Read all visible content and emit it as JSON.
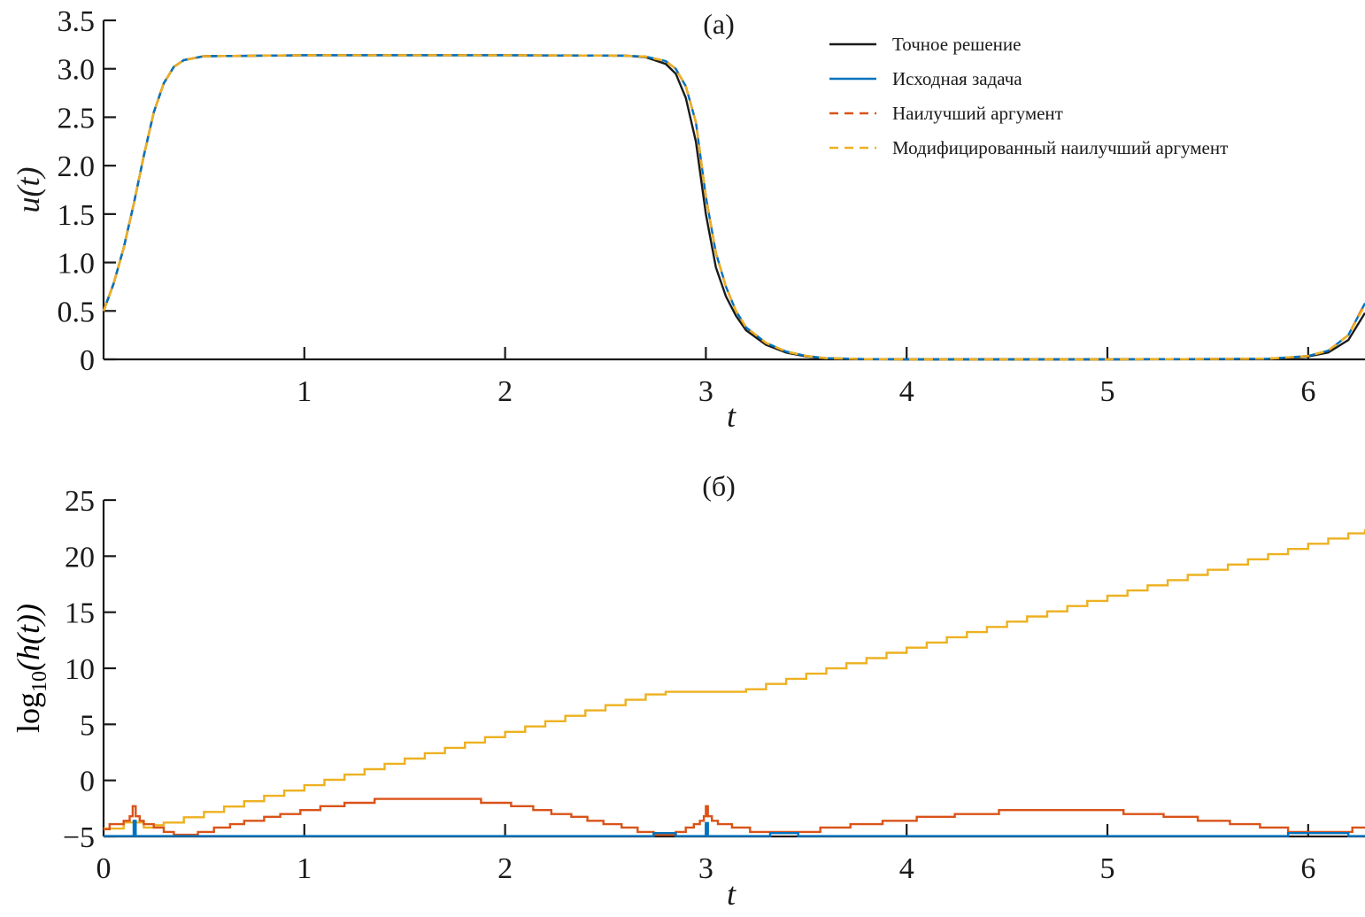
{
  "chart_data": [
    {
      "type": "line",
      "title": "(a)",
      "xlabel": "t",
      "ylabel": "u(t)",
      "xlim": [
        0,
        6.283
      ],
      "ylim": [
        0,
        3.5
      ],
      "xticks": [
        1,
        2,
        3,
        4,
        5,
        6
      ],
      "xtick_labels": [
        "1",
        "2",
        "3",
        "4",
        "5",
        "6"
      ],
      "yticks": [
        0,
        0.5,
        1,
        1.5,
        2,
        2.5,
        3,
        3.5
      ],
      "ytick_labels": [
        "0",
        "0.5",
        "1.0",
        "1.5",
        "2.0",
        "2.5",
        "3.0",
        "3.5"
      ],
      "grid": false,
      "legend_position": "top-right",
      "x": [
        0,
        0.05,
        0.1,
        0.15,
        0.2,
        0.25,
        0.3,
        0.35,
        0.4,
        0.5,
        1,
        2,
        2.6,
        2.7,
        2.8,
        2.85,
        2.9,
        2.95,
        3.0,
        3.05,
        3.1,
        3.15,
        3.2,
        3.3,
        3.4,
        3.5,
        3.6,
        3.8,
        4,
        5,
        5.8,
        6.0,
        6.1,
        6.2,
        6.283
      ],
      "series": [
        {
          "name": "Точное решение",
          "color": "#1a1a1a",
          "style": "solid",
          "values": [
            0.5,
            0.78,
            1.15,
            1.6,
            2.1,
            2.55,
            2.85,
            3.02,
            3.09,
            3.13,
            3.14,
            3.14,
            3.135,
            3.12,
            3.05,
            2.95,
            2.7,
            2.25,
            1.5,
            0.95,
            0.65,
            0.45,
            0.3,
            0.15,
            0.07,
            0.03,
            0.01,
            0.002,
            0,
            0,
            0.005,
            0.03,
            0.07,
            0.2,
            0.48
          ]
        },
        {
          "name": "Исходная задача",
          "color": "#0072bd",
          "style": "solid",
          "values": [
            0.5,
            0.78,
            1.15,
            1.6,
            2.1,
            2.55,
            2.85,
            3.02,
            3.09,
            3.13,
            3.14,
            3.14,
            3.135,
            3.125,
            3.08,
            3.0,
            2.82,
            2.45,
            1.68,
            1.1,
            0.75,
            0.5,
            0.33,
            0.17,
            0.08,
            0.035,
            0.012,
            0.003,
            0,
            0,
            0.006,
            0.035,
            0.09,
            0.25,
            0.58
          ]
        },
        {
          "name": "Наилучший аргумент",
          "color": "#d95319",
          "style": "dashed",
          "values": [
            0.5,
            0.78,
            1.15,
            1.6,
            2.1,
            2.55,
            2.85,
            3.02,
            3.09,
            3.13,
            3.14,
            3.14,
            3.135,
            3.125,
            3.08,
            3.0,
            2.82,
            2.45,
            1.68,
            1.1,
            0.75,
            0.5,
            0.33,
            0.17,
            0.08,
            0.035,
            0.012,
            0.003,
            0,
            0,
            0.006,
            0.035,
            0.09,
            0.25,
            0.58
          ]
        },
        {
          "name": "Модифицированный наилучший аргумент",
          "color": "#edb120",
          "style": "dashed",
          "values": [
            0.5,
            0.78,
            1.15,
            1.6,
            2.1,
            2.55,
            2.85,
            3.02,
            3.09,
            3.13,
            3.14,
            3.14,
            3.135,
            3.125,
            3.08,
            3.0,
            2.82,
            2.45,
            1.68,
            1.1,
            0.75,
            0.5,
            0.33,
            0.17,
            0.08,
            0.035,
            0.012,
            0.003,
            0,
            0,
            0.006,
            0.035,
            0.09,
            0.25,
            0.56
          ]
        }
      ]
    },
    {
      "type": "line",
      "title": "(б)",
      "xlabel": "t",
      "ylabel": "log10(h(t))",
      "ylabel_parts": {
        "base": "log",
        "sub": "10",
        "rest": "(h(t))"
      },
      "xlim": [
        0,
        6.283
      ],
      "ylim": [
        -5,
        25
      ],
      "xticks": [
        0,
        1,
        2,
        3,
        4,
        5,
        6
      ],
      "xtick_labels": [
        "0",
        "1",
        "2",
        "3",
        "4",
        "5",
        "6"
      ],
      "yticks": [
        -5,
        0,
        5,
        10,
        15,
        20,
        25
      ],
      "ytick_labels": [
        "−5",
        "0",
        "5",
        "10",
        "15",
        "20",
        "25"
      ],
      "grid": false,
      "series": [
        {
          "color": "#edb120",
          "style": "step",
          "points": [
            [
              0,
              -4.3
            ],
            [
              0.1,
              -3.75
            ],
            [
              0.2,
              -4.2
            ],
            [
              0.25,
              -4.0
            ],
            [
              0.3,
              -3.76
            ],
            [
              0.4,
              -3.29
            ],
            [
              0.5,
              -2.81
            ],
            [
              0.6,
              -2.33
            ],
            [
              0.7,
              -1.86
            ],
            [
              0.8,
              -1.38
            ],
            [
              0.9,
              -0.91
            ],
            [
              1.0,
              -0.43
            ],
            [
              1.1,
              0.05
            ],
            [
              1.2,
              0.52
            ],
            [
              1.3,
              1.0
            ],
            [
              1.4,
              1.48
            ],
            [
              1.5,
              1.95
            ],
            [
              1.6,
              2.43
            ],
            [
              1.7,
              2.9
            ],
            [
              1.8,
              3.38
            ],
            [
              1.9,
              3.86
            ],
            [
              2.0,
              4.33
            ],
            [
              2.1,
              4.81
            ],
            [
              2.2,
              5.28
            ],
            [
              2.3,
              5.76
            ],
            [
              2.4,
              6.24
            ],
            [
              2.5,
              6.71
            ],
            [
              2.6,
              7.19
            ],
            [
              2.7,
              7.66
            ],
            [
              2.8,
              7.9
            ],
            [
              3.2,
              8.13
            ],
            [
              3.3,
              8.6
            ],
            [
              3.4,
              9.06
            ],
            [
              3.5,
              9.52
            ],
            [
              3.6,
              9.99
            ],
            [
              3.7,
              10.45
            ],
            [
              3.8,
              10.91
            ],
            [
              3.9,
              11.38
            ],
            [
              4.0,
              11.84
            ],
            [
              4.1,
              12.3
            ],
            [
              4.2,
              12.77
            ],
            [
              4.3,
              13.23
            ],
            [
              4.4,
              13.69
            ],
            [
              4.5,
              14.16
            ],
            [
              4.6,
              14.62
            ],
            [
              4.7,
              15.08
            ],
            [
              4.8,
              15.55
            ],
            [
              4.9,
              16.01
            ],
            [
              5.0,
              16.47
            ],
            [
              5.1,
              16.94
            ],
            [
              5.2,
              17.4
            ],
            [
              5.3,
              17.86
            ],
            [
              5.4,
              18.33
            ],
            [
              5.5,
              18.79
            ],
            [
              5.6,
              19.25
            ],
            [
              5.7,
              19.72
            ],
            [
              5.8,
              20.18
            ],
            [
              5.9,
              20.64
            ],
            [
              6.0,
              21.11
            ],
            [
              6.1,
              21.57
            ],
            [
              6.2,
              22.03
            ],
            [
              6.283,
              22.4
            ]
          ]
        },
        {
          "color": "#d95319",
          "style": "step",
          "points": [
            [
              0,
              -4.35
            ],
            [
              0.03,
              -3.9
            ],
            [
              0.1,
              -3.6
            ],
            [
              0.13,
              -3.2
            ],
            [
              0.145,
              -2.3
            ],
            [
              0.16,
              -3.2
            ],
            [
              0.18,
              -3.6
            ],
            [
              0.2,
              -3.9
            ],
            [
              0.25,
              -4.2
            ],
            [
              0.3,
              -4.6
            ],
            [
              0.35,
              -4.85
            ],
            [
              0.47,
              -4.6
            ],
            [
              0.55,
              -4.2
            ],
            [
              0.63,
              -3.9
            ],
            [
              0.7,
              -3.6
            ],
            [
              0.8,
              -3.25
            ],
            [
              0.88,
              -3.0
            ],
            [
              0.98,
              -2.65
            ],
            [
              1.08,
              -2.3
            ],
            [
              1.2,
              -2.0
            ],
            [
              1.35,
              -1.65
            ],
            [
              1.88,
              -2.0
            ],
            [
              2.03,
              -2.3
            ],
            [
              2.14,
              -2.65
            ],
            [
              2.23,
              -3.0
            ],
            [
              2.33,
              -3.25
            ],
            [
              2.41,
              -3.6
            ],
            [
              2.49,
              -3.9
            ],
            [
              2.58,
              -4.2
            ],
            [
              2.66,
              -4.6
            ],
            [
              2.74,
              -4.85
            ],
            [
              2.85,
              -4.6
            ],
            [
              2.9,
              -4.2
            ],
            [
              2.94,
              -3.9
            ],
            [
              2.97,
              -3.6
            ],
            [
              2.99,
              -3.2
            ],
            [
              3.0,
              -2.3
            ],
            [
              3.01,
              -3.2
            ],
            [
              3.03,
              -3.6
            ],
            [
              3.06,
              -3.9
            ],
            [
              3.13,
              -4.2
            ],
            [
              3.22,
              -4.6
            ],
            [
              3.57,
              -4.2
            ],
            [
              3.72,
              -3.9
            ],
            [
              3.88,
              -3.6
            ],
            [
              4.05,
              -3.25
            ],
            [
              4.24,
              -3.0
            ],
            [
              4.46,
              -2.65
            ],
            [
              5.08,
              -3.0
            ],
            [
              5.28,
              -3.25
            ],
            [
              5.45,
              -3.6
            ],
            [
              5.61,
              -3.9
            ],
            [
              5.76,
              -4.2
            ],
            [
              5.9,
              -4.6
            ],
            [
              6.22,
              -4.2
            ],
            [
              6.283,
              -4.2
            ]
          ]
        },
        {
          "color": "#0072bd",
          "style": "step",
          "points": [
            [
              0,
              -4.97
            ],
            [
              0.14,
              -4.97
            ],
            [
              0.15,
              -3.6
            ],
            [
              0.16,
              -4.97
            ],
            [
              2.74,
              -4.7
            ],
            [
              2.85,
              -4.97
            ],
            [
              2.995,
              -4.97
            ],
            [
              3.0,
              -3.8
            ],
            [
              3.01,
              -4.97
            ],
            [
              3.32,
              -4.7
            ],
            [
              3.46,
              -4.97
            ],
            [
              5.9,
              -4.7
            ],
            [
              6.2,
              -4.97
            ],
            [
              6.283,
              -4.97
            ]
          ]
        }
      ]
    }
  ]
}
